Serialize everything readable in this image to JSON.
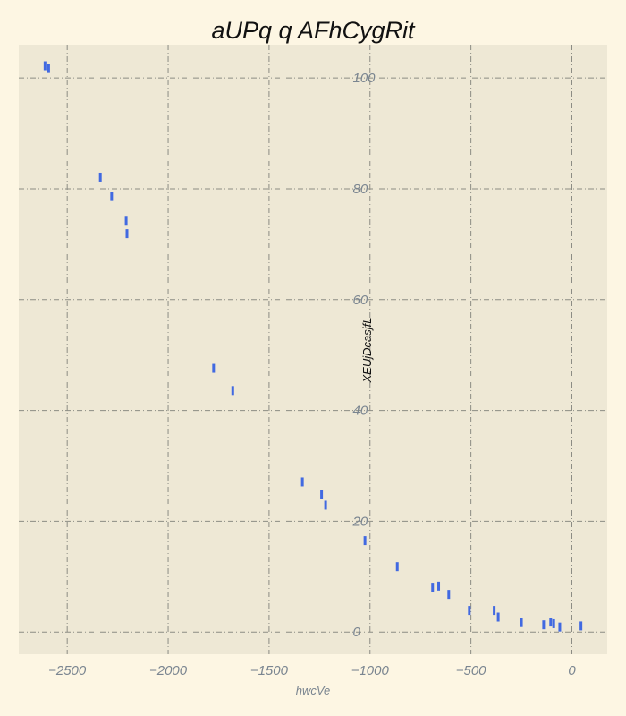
{
  "chart_data": {
    "type": "scatter",
    "title": "aUPq  q AFhCygRit",
    "xlabel": "hwcVe",
    "ylabel": "XEUjDcasjfL",
    "xlim": [
      -2740,
      175
    ],
    "ylim": [
      -4,
      106
    ],
    "xticks": [
      -2500,
      -2000,
      -1500,
      -1000,
      -500,
      0
    ],
    "xtick_labels": [
      "−2500",
      "−2000",
      "−1500",
      "−1000",
      "−500",
      "0"
    ],
    "yticks": [
      0,
      20,
      40,
      60,
      80,
      100
    ],
    "ytick_labels": [
      "0",
      "20",
      "40",
      "60",
      "80",
      "100"
    ],
    "grid": true,
    "marker": "vertical-line",
    "colors": {
      "marker": "#4169e1",
      "page_background": "#fdf6e3",
      "plot_background": "#eee8d5",
      "grid": "#8c8c84"
    },
    "points": [
      {
        "x": -2610,
        "y": 102.2
      },
      {
        "x": -2592,
        "y": 101.7
      },
      {
        "x": -2336,
        "y": 82.1
      },
      {
        "x": -2280,
        "y": 78.6
      },
      {
        "x": -2208,
        "y": 74.3
      },
      {
        "x": -2204,
        "y": 71.9
      },
      {
        "x": -1775,
        "y": 47.6
      },
      {
        "x": -1680,
        "y": 43.6
      },
      {
        "x": -1335,
        "y": 27.1
      },
      {
        "x": -1240,
        "y": 24.8
      },
      {
        "x": -1220,
        "y": 22.9
      },
      {
        "x": -1025,
        "y": 16.5
      },
      {
        "x": -865,
        "y": 11.8
      },
      {
        "x": -690,
        "y": 8.1
      },
      {
        "x": -660,
        "y": 8.3
      },
      {
        "x": -610,
        "y": 6.8
      },
      {
        "x": -508,
        "y": 3.9
      },
      {
        "x": -385,
        "y": 3.9
      },
      {
        "x": -365,
        "y": 2.7
      },
      {
        "x": -250,
        "y": 1.7
      },
      {
        "x": -140,
        "y": 1.3
      },
      {
        "x": -105,
        "y": 1.8
      },
      {
        "x": -90,
        "y": 1.5
      },
      {
        "x": -60,
        "y": 0.9
      },
      {
        "x": 45,
        "y": 1.1
      }
    ]
  }
}
